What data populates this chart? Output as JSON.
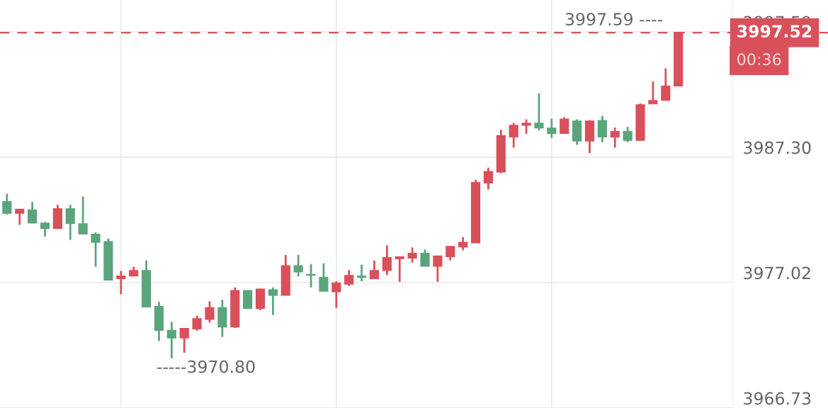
{
  "chart_data": {
    "type": "candlestick",
    "categories": [
      null,
      null,
      null,
      null,
      null,
      null,
      null,
      null,
      null,
      null,
      null,
      null,
      null,
      null,
      null,
      null,
      null,
      null,
      null,
      null,
      null,
      null,
      null,
      null,
      null,
      null,
      null,
      null,
      null,
      null,
      null,
      null,
      null,
      null,
      null,
      null,
      null,
      null,
      null,
      null,
      null,
      null,
      null,
      null,
      null,
      null,
      null,
      null,
      null,
      null,
      null,
      null,
      null,
      null
    ],
    "ohlc": [
      [
        3983.63,
        3984.31,
        3982.61,
        3982.72
      ],
      [
        3982.72,
        3983.01,
        3981.76,
        3983.01
      ],
      [
        3982.95,
        3983.63,
        3981.93,
        3981.93
      ],
      [
        3981.88,
        3981.99,
        3980.8,
        3981.48
      ],
      [
        3981.48,
        3983.4,
        3981.48,
        3983.06
      ],
      [
        3983.06,
        3983.4,
        3980.52,
        3981.88
      ],
      [
        3981.82,
        3984.08,
        3981.03,
        3981.03
      ],
      [
        3980.97,
        3981.14,
        3978.32,
        3980.35
      ],
      [
        3980.35,
        3980.63,
        3977.19,
        3977.25
      ],
      [
        3977.36,
        3977.98,
        3976.06,
        3977.53
      ],
      [
        3977.58,
        3978.32,
        3977.53,
        3977.98
      ],
      [
        3977.98,
        3978.83,
        3975.04,
        3975.04
      ],
      [
        3975.04,
        3975.44,
        3972.22,
        3973.12
      ],
      [
        3973.07,
        3973.8,
        3970.8,
        3972.5
      ],
      [
        3972.5,
        3973.24,
        3971.26,
        3973.24
      ],
      [
        3973.24,
        3974.31,
        3973.07,
        3974.03
      ],
      [
        3974.03,
        3975.49,
        3973.74,
        3974.93
      ],
      [
        3974.93,
        3975.61,
        3972.56,
        3973.4
      ],
      [
        3973.4,
        3976.62,
        3973.29,
        3976.34
      ],
      [
        3976.34,
        3976.34,
        3974.93,
        3974.93
      ],
      [
        3974.93,
        3976.51,
        3974.76,
        3976.46
      ],
      [
        3976.4,
        3976.62,
        3974.37,
        3976.0
      ],
      [
        3976.0,
        3979.28,
        3976.0,
        3978.38
      ],
      [
        3978.38,
        3979.28,
        3977.53,
        3977.92
      ],
      [
        3977.66,
        3978.55,
        3976.62,
        3977.64
      ],
      [
        3977.42,
        3978.6,
        3976.34,
        3976.34
      ],
      [
        3976.29,
        3977.13,
        3974.93,
        3976.96
      ],
      [
        3976.91,
        3978.04,
        3976.74,
        3977.58
      ],
      [
        3977.53,
        3978.49,
        3977.13,
        3977.47
      ],
      [
        3977.36,
        3978.83,
        3977.3,
        3977.98
      ],
      [
        3978.04,
        3980.07,
        3977.64,
        3979.05
      ],
      [
        3979.0,
        3979.17,
        3977.08,
        3979.11
      ],
      [
        3979.05,
        3979.9,
        3978.66,
        3979.39
      ],
      [
        3979.39,
        3979.73,
        3978.38,
        3978.38
      ],
      [
        3978.38,
        3979.17,
        3977.08,
        3979.17
      ],
      [
        3979.17,
        3980.01,
        3978.83,
        3979.96
      ],
      [
        3979.96,
        3980.75,
        3979.67,
        3980.3
      ],
      [
        3980.3,
        3985.44,
        3980.3,
        3985.21
      ],
      [
        3985.21,
        3986.45,
        3984.65,
        3986.11
      ],
      [
        3986.11,
        3989.56,
        3986.0,
        3989.05
      ],
      [
        3988.99,
        3990.12,
        3988.09,
        3989.9
      ],
      [
        3989.95,
        3990.41,
        3989.22,
        3990.07
      ],
      [
        3990.07,
        3992.55,
        3989.5,
        3989.73
      ],
      [
        3989.67,
        3990.46,
        3988.88,
        3989.28
      ],
      [
        3989.28,
        3990.58,
        3989.28,
        3990.41
      ],
      [
        3990.24,
        3990.41,
        3988.32,
        3988.66
      ],
      [
        3988.66,
        3990.35,
        3987.64,
        3990.24
      ],
      [
        3990.29,
        3990.69,
        3988.54,
        3988.99
      ],
      [
        3988.99,
        3989.73,
        3988.09,
        3989.39
      ],
      [
        3989.39,
        3989.79,
        3988.54,
        3988.71
      ],
      [
        3988.71,
        3991.71,
        3988.66,
        3991.59
      ],
      [
        3991.71,
        3993.51,
        3991.71,
        3991.93
      ],
      [
        3991.99,
        3994.59,
        3991.99,
        3993.12
      ],
      [
        3993.17,
        3997.59,
        3993.17,
        3997.52
      ]
    ],
    "colors": [
      "#5ba57c",
      "#d9505b",
      "#5ba57c",
      "#5ba57c",
      "#d9505b",
      "#5ba57c",
      "#5ba57c",
      "#5ba57c",
      "#5ba57c",
      "#d9505b",
      "#d9505b",
      "#5ba57c",
      "#5ba57c",
      "#5ba57c",
      "#d9505b",
      "#d9505b",
      "#d9505b",
      "#5ba57c",
      "#d9505b",
      "#5ba57c",
      "#d9505b",
      "#5ba57c",
      "#d9505b",
      "#5ba57c",
      "#5ba57c",
      "#5ba57c",
      "#d9505b",
      "#d9505b",
      "#5ba57c",
      "#d9505b",
      "#d9505b",
      "#d9505b",
      "#d9505b",
      "#5ba57c",
      "#d9505b",
      "#d9505b",
      "#d9505b",
      "#d9505b",
      "#d9505b",
      "#d9505b",
      "#d9505b",
      "#d9505b",
      "#5ba57c",
      "#5ba57c",
      "#d9505b",
      "#5ba57c",
      "#d9505b",
      "#5ba57c",
      "#d9505b",
      "#5ba57c",
      "#d9505b",
      "#d9505b",
      "#d9505b",
      "#d9505b"
    ],
    "ylim": [
      3966.73,
      4000.2
    ],
    "yticks": [
      3966.73,
      3977.02,
      {
        "value": 3987.3,
        "label": "3987.30"
      },
      3997.59
    ],
    "grid": true,
    "ref_lines": [
      {
        "axis": "y",
        "value": 3997.52,
        "label": "3997.52",
        "color": "#d9505b",
        "line_style": "dashed"
      }
    ],
    "annotations": [
      "3997.59 ----",
      "-----3970.80",
      "00:36"
    ]
  }
}
